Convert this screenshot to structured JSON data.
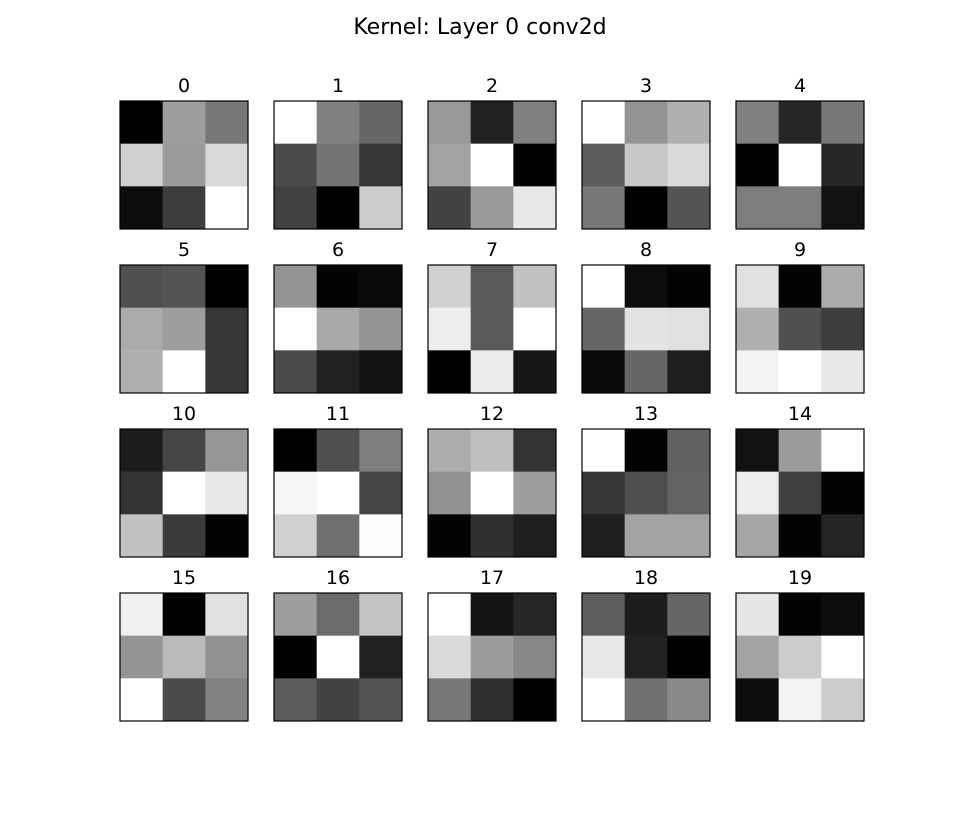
{
  "chart_data": {
    "type": "heatmap",
    "title": "Kernel: Layer 0 conv2d",
    "colormap": "gray",
    "grid": false,
    "rows": 4,
    "cols": 5,
    "kernels": [
      {
        "label": "0",
        "values": [
          [
            0.0,
            0.62,
            0.47
          ],
          [
            0.82,
            0.61,
            0.85
          ],
          [
            0.05,
            0.24,
            1.0
          ]
        ]
      },
      {
        "label": "1",
        "values": [
          [
            1.0,
            0.5,
            0.4
          ],
          [
            0.29,
            0.45,
            0.21
          ],
          [
            0.26,
            0.0,
            0.8
          ]
        ]
      },
      {
        "label": "2",
        "values": [
          [
            0.6,
            0.13,
            0.5
          ],
          [
            0.64,
            1.0,
            0.0
          ],
          [
            0.26,
            0.6,
            0.91
          ]
        ]
      },
      {
        "label": "3",
        "values": [
          [
            1.0,
            0.58,
            0.69
          ],
          [
            0.36,
            0.78,
            0.85
          ],
          [
            0.47,
            0.0,
            0.33
          ]
        ]
      },
      {
        "label": "4",
        "values": [
          [
            0.5,
            0.15,
            0.47
          ],
          [
            0.0,
            1.0,
            0.15
          ],
          [
            0.49,
            0.49,
            0.07
          ]
        ]
      },
      {
        "label": "5",
        "values": [
          [
            0.31,
            0.33,
            0.0
          ],
          [
            0.67,
            0.62,
            0.21
          ],
          [
            0.69,
            1.0,
            0.21
          ]
        ]
      },
      {
        "label": "6",
        "values": [
          [
            0.58,
            0.01,
            0.04
          ],
          [
            1.0,
            0.66,
            0.58
          ],
          [
            0.29,
            0.13,
            0.07
          ]
        ]
      },
      {
        "label": "7",
        "values": [
          [
            0.82,
            0.35,
            0.76
          ],
          [
            0.93,
            0.35,
            1.0
          ],
          [
            0.0,
            0.92,
            0.09
          ]
        ]
      },
      {
        "label": "8",
        "values": [
          [
            1.0,
            0.05,
            0.01
          ],
          [
            0.4,
            0.89,
            0.88
          ],
          [
            0.04,
            0.4,
            0.12
          ]
        ]
      },
      {
        "label": "9",
        "values": [
          [
            0.88,
            0.01,
            0.67
          ],
          [
            0.69,
            0.31,
            0.24
          ],
          [
            0.95,
            1.0,
            0.91
          ]
        ]
      },
      {
        "label": "10",
        "values": [
          [
            0.11,
            0.27,
            0.59
          ],
          [
            0.2,
            1.0,
            0.91
          ],
          [
            0.76,
            0.23,
            0.01
          ]
        ]
      },
      {
        "label": "11",
        "values": [
          [
            0.0,
            0.31,
            0.49
          ],
          [
            0.97,
            1.0,
            0.27
          ],
          [
            0.82,
            0.44,
            0.99
          ]
        ]
      },
      {
        "label": "12",
        "values": [
          [
            0.68,
            0.75,
            0.2
          ],
          [
            0.57,
            1.0,
            0.62
          ],
          [
            0.01,
            0.19,
            0.12
          ]
        ]
      },
      {
        "label": "13",
        "values": [
          [
            1.0,
            0.01,
            0.38
          ],
          [
            0.21,
            0.31,
            0.39
          ],
          [
            0.12,
            0.64,
            0.64
          ]
        ]
      },
      {
        "label": "14",
        "values": [
          [
            0.07,
            0.61,
            1.0
          ],
          [
            0.93,
            0.25,
            0.01
          ],
          [
            0.65,
            0.01,
            0.14
          ]
        ]
      },
      {
        "label": "15",
        "values": [
          [
            0.94,
            0.0,
            0.88
          ],
          [
            0.58,
            0.73,
            0.57
          ],
          [
            1.0,
            0.29,
            0.51
          ]
        ]
      },
      {
        "label": "16",
        "values": [
          [
            0.62,
            0.42,
            0.77
          ],
          [
            0.0,
            1.0,
            0.13
          ],
          [
            0.36,
            0.26,
            0.33
          ]
        ]
      },
      {
        "label": "17",
        "values": [
          [
            1.0,
            0.08,
            0.15
          ],
          [
            0.85,
            0.61,
            0.53
          ],
          [
            0.47,
            0.19,
            0.0
          ]
        ]
      },
      {
        "label": "18",
        "values": [
          [
            0.37,
            0.11,
            0.4
          ],
          [
            0.91,
            0.13,
            0.0
          ],
          [
            1.0,
            0.44,
            0.54
          ]
        ]
      },
      {
        "label": "19",
        "values": [
          [
            0.9,
            0.01,
            0.05
          ],
          [
            0.64,
            0.8,
            1.0
          ],
          [
            0.05,
            0.95,
            0.8
          ]
        ]
      }
    ]
  }
}
